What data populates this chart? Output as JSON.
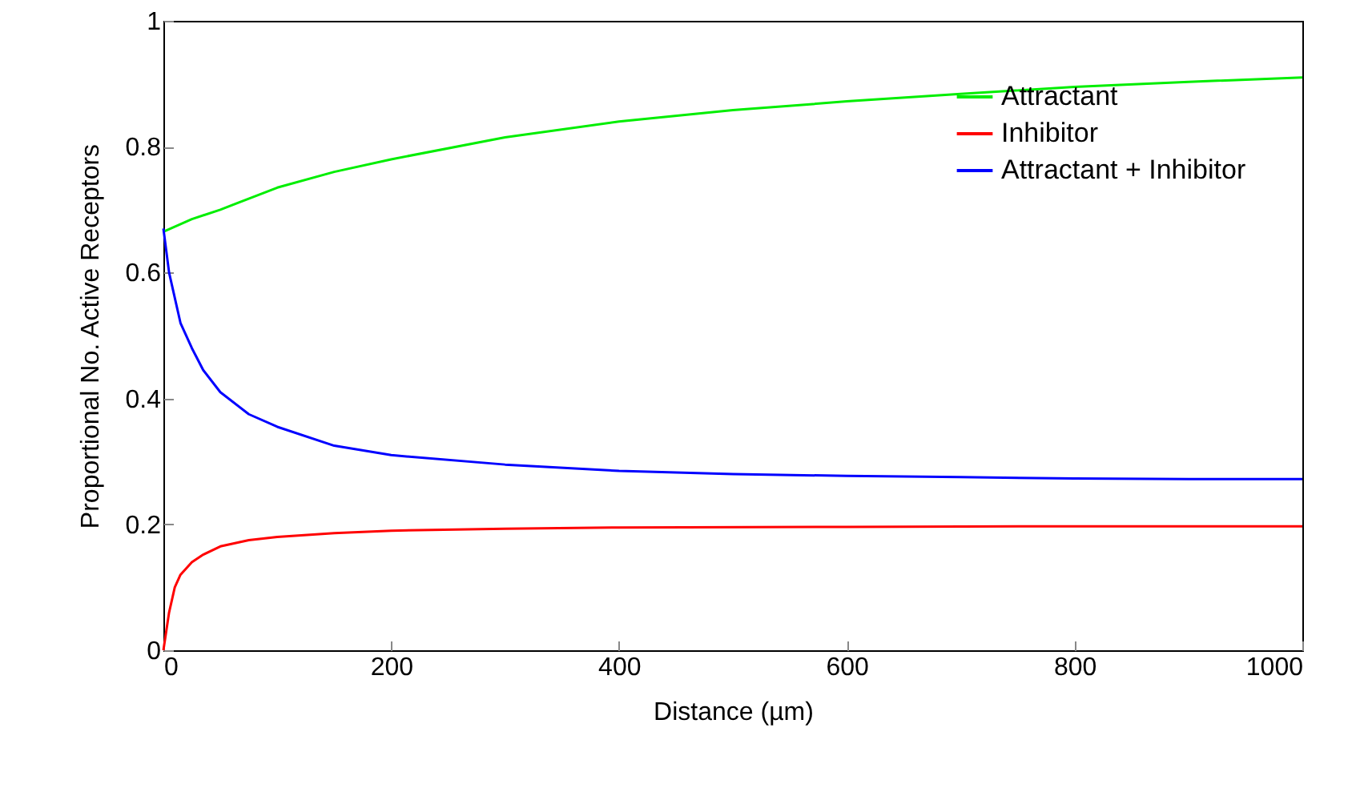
{
  "chart_data": {
    "type": "line",
    "xlabel": "Distance (µm)",
    "ylabel": "Proportional No. Active Receptors",
    "xlim": [
      0,
      1000
    ],
    "ylim": [
      0,
      1
    ],
    "xticks": [
      0,
      200,
      400,
      600,
      800,
      1000
    ],
    "yticks": [
      0,
      0.2,
      0.4,
      0.6,
      0.8,
      1
    ],
    "grid": false,
    "legend": "top right",
    "line_style": "solid",
    "marker": "none",
    "series": [
      {
        "name": "Attractant",
        "color": "#00ee00",
        "x": [
          0,
          25,
          50,
          100,
          150,
          200,
          300,
          400,
          500,
          600,
          700,
          800,
          900,
          1000
        ],
        "values": [
          0.665,
          0.685,
          0.7,
          0.735,
          0.76,
          0.78,
          0.815,
          0.84,
          0.858,
          0.872,
          0.884,
          0.895,
          0.903,
          0.91
        ]
      },
      {
        "name": "Inhibitor",
        "color": "#ff0000",
        "x": [
          0,
          5,
          10,
          15,
          25,
          35,
          50,
          75,
          100,
          150,
          200,
          300,
          400,
          600,
          800,
          1000
        ],
        "values": [
          0,
          0.06,
          0.1,
          0.12,
          0.14,
          0.152,
          0.165,
          0.175,
          0.18,
          0.186,
          0.19,
          0.193,
          0.195,
          0.196,
          0.197,
          0.197
        ]
      },
      {
        "name": "Attractant + Inhibitor",
        "color": "#0000ff",
        "x": [
          0,
          5,
          10,
          15,
          25,
          35,
          50,
          75,
          100,
          150,
          200,
          300,
          400,
          500,
          600,
          700,
          800,
          900,
          1000
        ],
        "values": [
          0.67,
          0.6,
          0.56,
          0.52,
          0.48,
          0.445,
          0.41,
          0.375,
          0.355,
          0.325,
          0.31,
          0.295,
          0.285,
          0.28,
          0.277,
          0.275,
          0.273,
          0.272,
          0.272
        ]
      }
    ]
  }
}
